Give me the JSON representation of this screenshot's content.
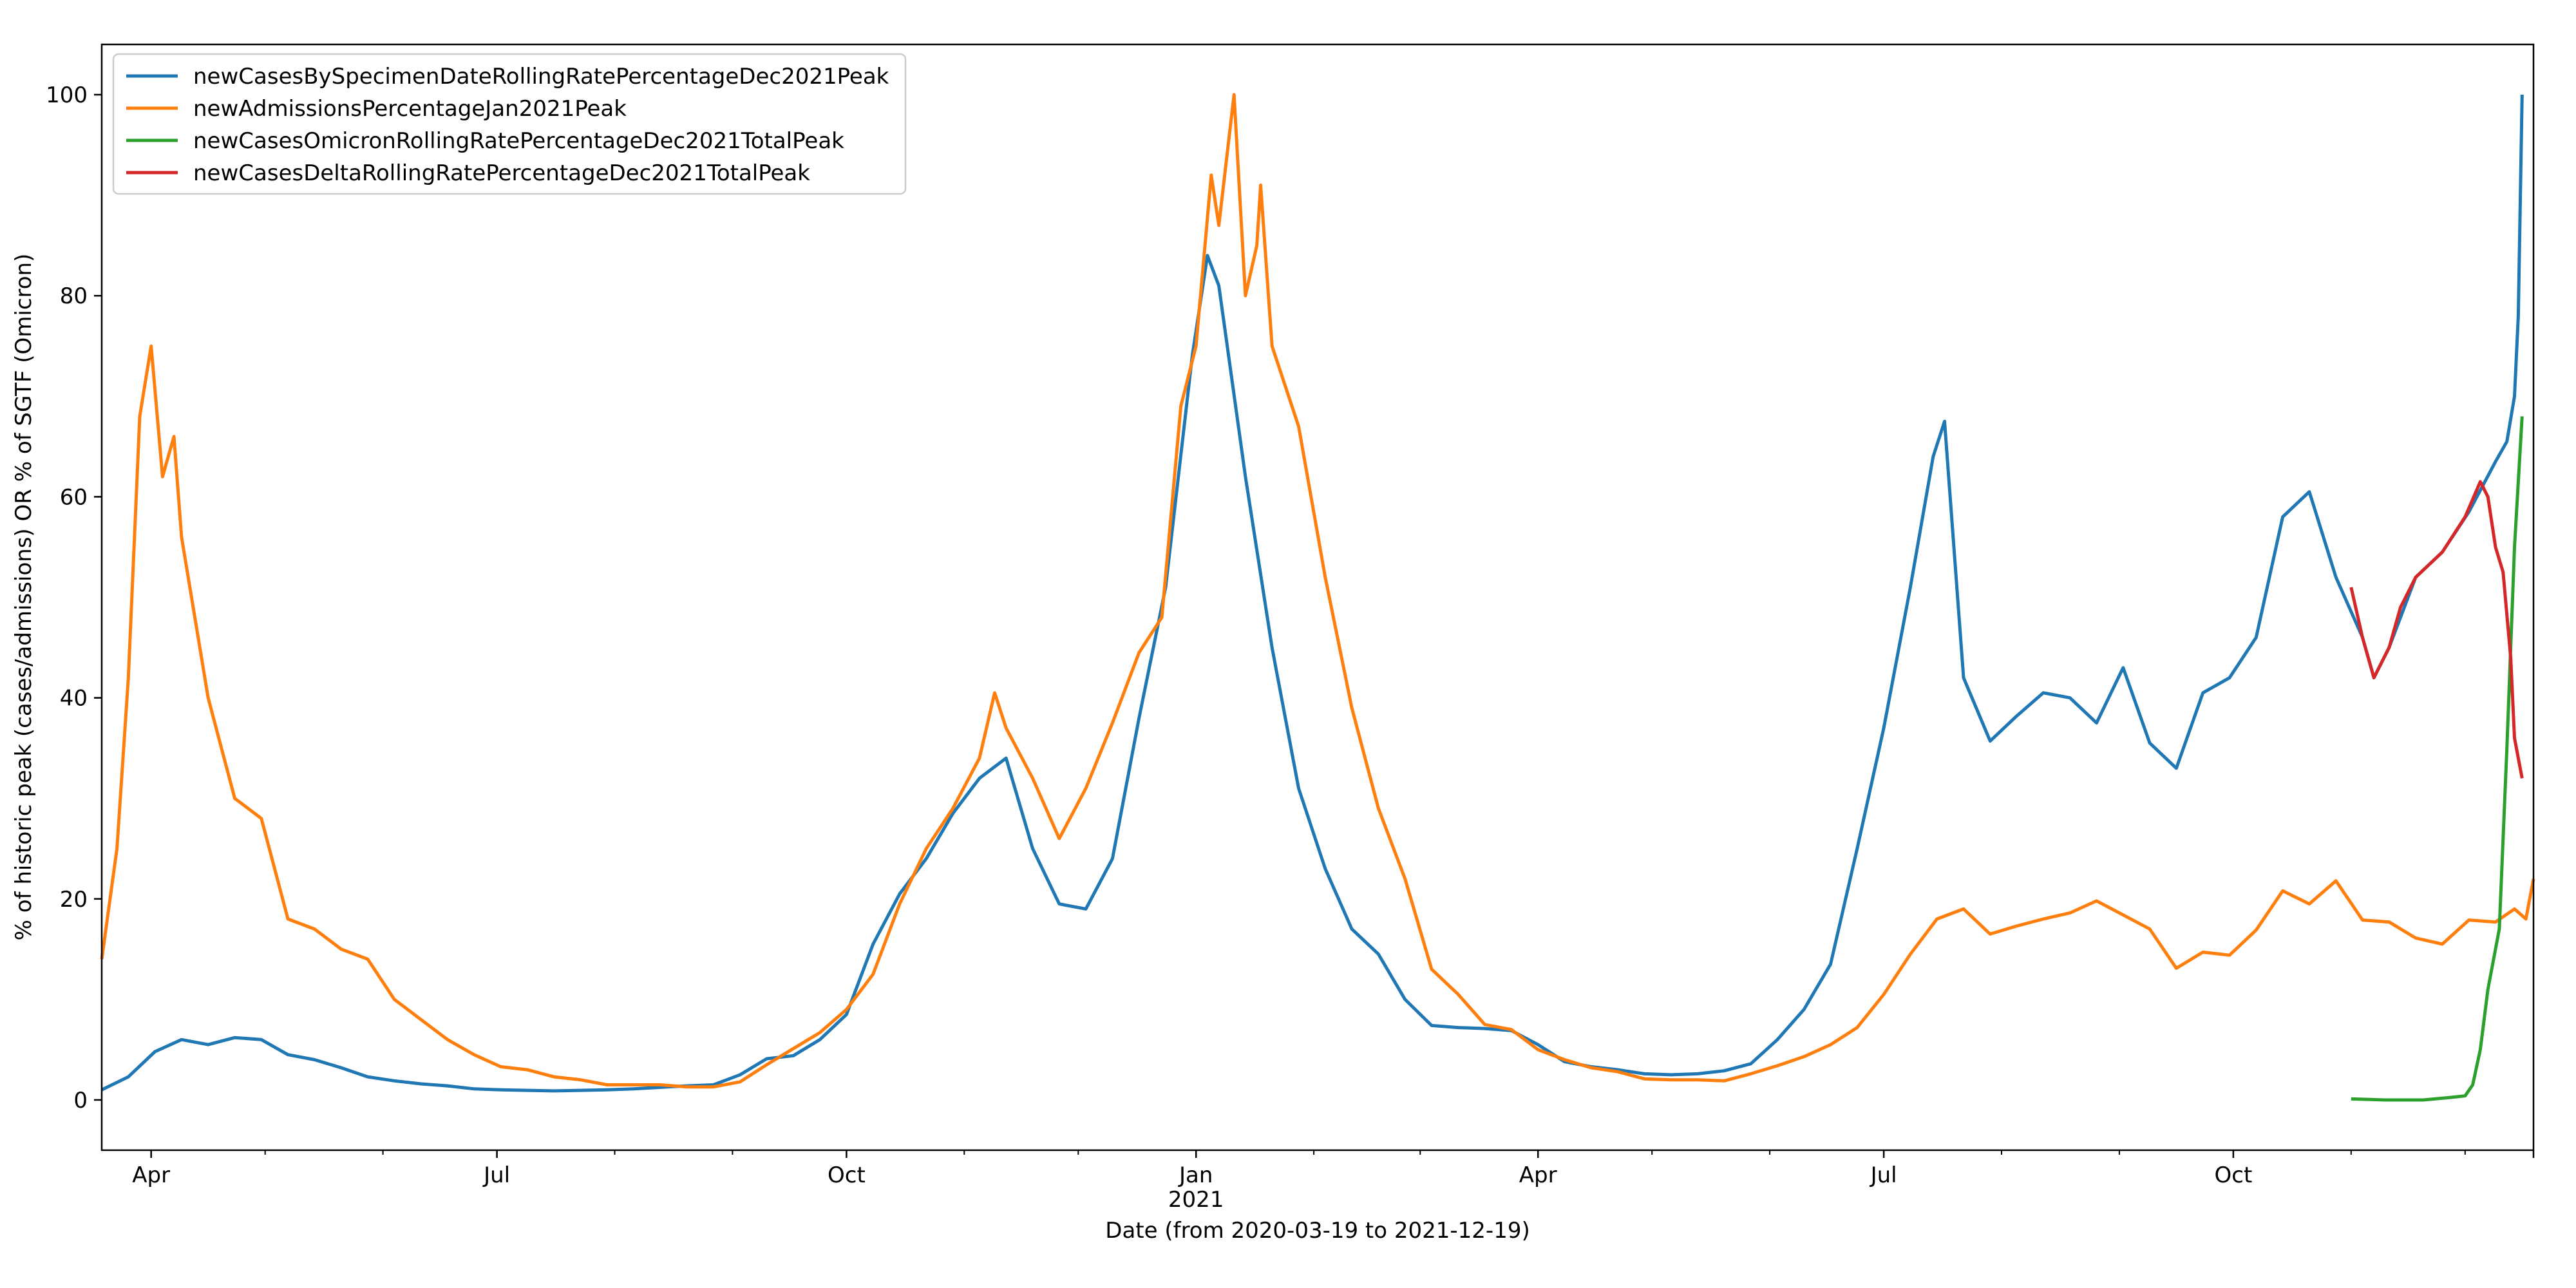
{
  "chart_data": {
    "type": "line",
    "title": "",
    "xlabel": "Date (from 2020-03-19 to 2021-12-19)",
    "ylabel": "% of historic peak (cases/admissions) OR % of SGTF (Omicron)",
    "xlim": [
      "2020-03-19",
      "2021-12-19"
    ],
    "ylim": [
      -5,
      105
    ],
    "yticks": [
      0,
      20,
      40,
      60,
      80,
      100
    ],
    "xticks": [
      {
        "date": "2020-04-01",
        "label": "Apr"
      },
      {
        "date": "2020-07-01",
        "label": "Jul"
      },
      {
        "date": "2020-10-01",
        "label": "Oct"
      },
      {
        "date": "2021-01-01",
        "label": "Jan",
        "sublabel": "2021"
      },
      {
        "date": "2021-04-01",
        "label": "Apr"
      },
      {
        "date": "2021-07-01",
        "label": "Jul"
      },
      {
        "date": "2021-10-01",
        "label": "Oct"
      }
    ],
    "minor_ticks": "monthly",
    "grid": false,
    "legend_position": "top-left",
    "series": [
      {
        "name": "newCasesBySpecimenDateRollingRatePercentageDec2021Peak",
        "color": "#1f77b4",
        "points": [
          [
            "2020-03-19",
            1
          ],
          [
            "2020-03-26",
            2.3
          ],
          [
            "2020-04-02",
            4.8
          ],
          [
            "2020-04-09",
            6
          ],
          [
            "2020-04-16",
            5.5
          ],
          [
            "2020-04-23",
            6.2
          ],
          [
            "2020-04-30",
            6
          ],
          [
            "2020-05-07",
            4.5
          ],
          [
            "2020-05-14",
            4
          ],
          [
            "2020-05-21",
            3.2
          ],
          [
            "2020-05-28",
            2.3
          ],
          [
            "2020-06-04",
            1.9
          ],
          [
            "2020-06-11",
            1.6
          ],
          [
            "2020-06-18",
            1.4
          ],
          [
            "2020-06-25",
            1.1
          ],
          [
            "2020-07-02",
            1
          ],
          [
            "2020-07-09",
            0.95
          ],
          [
            "2020-07-16",
            0.9
          ],
          [
            "2020-07-23",
            0.95
          ],
          [
            "2020-07-30",
            1
          ],
          [
            "2020-08-06",
            1.1
          ],
          [
            "2020-08-13",
            1.25
          ],
          [
            "2020-08-20",
            1.4
          ],
          [
            "2020-08-27",
            1.5
          ],
          [
            "2020-09-03",
            2.5
          ],
          [
            "2020-09-10",
            4.1
          ],
          [
            "2020-09-17",
            4.4
          ],
          [
            "2020-09-24",
            6
          ],
          [
            "2020-10-01",
            8.5
          ],
          [
            "2020-10-08",
            15.5
          ],
          [
            "2020-10-15",
            20.5
          ],
          [
            "2020-10-22",
            24
          ],
          [
            "2020-10-29",
            28.5
          ],
          [
            "2020-11-05",
            32
          ],
          [
            "2020-11-12",
            34
          ],
          [
            "2020-11-19",
            25
          ],
          [
            "2020-11-26",
            19.5
          ],
          [
            "2020-12-03",
            19
          ],
          [
            "2020-12-10",
            24
          ],
          [
            "2020-12-17",
            38
          ],
          [
            "2020-12-24",
            51
          ],
          [
            "2020-12-31",
            74
          ],
          [
            "2021-01-04",
            84
          ],
          [
            "2021-01-07",
            81
          ],
          [
            "2021-01-14",
            62
          ],
          [
            "2021-01-21",
            45
          ],
          [
            "2021-01-28",
            31
          ],
          [
            "2021-02-04",
            23
          ],
          [
            "2021-02-11",
            17
          ],
          [
            "2021-02-18",
            14.5
          ],
          [
            "2021-02-25",
            10
          ],
          [
            "2021-03-04",
            7.4
          ],
          [
            "2021-03-11",
            7.2
          ],
          [
            "2021-03-18",
            7.1
          ],
          [
            "2021-03-25",
            6.9
          ],
          [
            "2021-04-01",
            5.5
          ],
          [
            "2021-04-08",
            3.8
          ],
          [
            "2021-04-15",
            3.3
          ],
          [
            "2021-04-22",
            3
          ],
          [
            "2021-04-29",
            2.6
          ],
          [
            "2021-05-06",
            2.5
          ],
          [
            "2021-05-13",
            2.6
          ],
          [
            "2021-05-20",
            2.9
          ],
          [
            "2021-05-27",
            3.6
          ],
          [
            "2021-06-03",
            6
          ],
          [
            "2021-06-10",
            9
          ],
          [
            "2021-06-17",
            13.5
          ],
          [
            "2021-06-24",
            25
          ],
          [
            "2021-07-01",
            37
          ],
          [
            "2021-07-08",
            51
          ],
          [
            "2021-07-14",
            64
          ],
          [
            "2021-07-17",
            67.5
          ],
          [
            "2021-07-22",
            42
          ],
          [
            "2021-07-29",
            35.7
          ],
          [
            "2021-08-05",
            38.2
          ],
          [
            "2021-08-12",
            40.5
          ],
          [
            "2021-08-19",
            40
          ],
          [
            "2021-08-26",
            37.5
          ],
          [
            "2021-09-02",
            43
          ],
          [
            "2021-09-09",
            35.5
          ],
          [
            "2021-09-16",
            33
          ],
          [
            "2021-09-23",
            40.5
          ],
          [
            "2021-09-30",
            42
          ],
          [
            "2021-10-07",
            46
          ],
          [
            "2021-10-14",
            58
          ],
          [
            "2021-10-21",
            60.5
          ],
          [
            "2021-10-28",
            52
          ],
          [
            "2021-11-04",
            46
          ],
          [
            "2021-11-07",
            42
          ],
          [
            "2021-11-11",
            45
          ],
          [
            "2021-11-18",
            52
          ],
          [
            "2021-11-25",
            54.5
          ],
          [
            "2021-12-02",
            58.5
          ],
          [
            "2021-12-09",
            63.5
          ],
          [
            "2021-12-12",
            65.5
          ],
          [
            "2021-12-14",
            70
          ],
          [
            "2021-12-15",
            78
          ],
          [
            "2021-12-16",
            100
          ]
        ]
      },
      {
        "name": "newAdmissionsPercentageJan2021Peak",
        "color": "#ff7f0e",
        "points": [
          [
            "2020-03-19",
            14
          ],
          [
            "2020-03-23",
            25
          ],
          [
            "2020-03-26",
            42
          ],
          [
            "2020-03-29",
            68
          ],
          [
            "2020-04-01",
            75
          ],
          [
            "2020-04-04",
            62
          ],
          [
            "2020-04-07",
            66
          ],
          [
            "2020-04-09",
            56
          ],
          [
            "2020-04-16",
            40
          ],
          [
            "2020-04-23",
            30
          ],
          [
            "2020-04-30",
            28
          ],
          [
            "2020-05-07",
            18
          ],
          [
            "2020-05-14",
            17
          ],
          [
            "2020-05-21",
            15
          ],
          [
            "2020-05-28",
            14
          ],
          [
            "2020-06-04",
            10
          ],
          [
            "2020-06-11",
            8
          ],
          [
            "2020-06-18",
            6
          ],
          [
            "2020-06-25",
            4.5
          ],
          [
            "2020-07-02",
            3.3
          ],
          [
            "2020-07-09",
            3
          ],
          [
            "2020-07-16",
            2.3
          ],
          [
            "2020-07-23",
            2
          ],
          [
            "2020-07-30",
            1.5
          ],
          [
            "2020-08-06",
            1.5
          ],
          [
            "2020-08-13",
            1.5
          ],
          [
            "2020-08-20",
            1.3
          ],
          [
            "2020-08-27",
            1.3
          ],
          [
            "2020-09-03",
            1.8
          ],
          [
            "2020-09-10",
            3.5
          ],
          [
            "2020-09-17",
            5.1
          ],
          [
            "2020-09-24",
            6.7
          ],
          [
            "2020-10-01",
            9
          ],
          [
            "2020-10-08",
            12.5
          ],
          [
            "2020-10-15",
            19.5
          ],
          [
            "2020-10-22",
            25
          ],
          [
            "2020-10-29",
            29
          ],
          [
            "2020-11-05",
            34
          ],
          [
            "2020-11-09",
            40.5
          ],
          [
            "2020-11-12",
            37
          ],
          [
            "2020-11-19",
            32
          ],
          [
            "2020-11-26",
            26
          ],
          [
            "2020-12-03",
            31
          ],
          [
            "2020-12-10",
            37.5
          ],
          [
            "2020-12-17",
            44.5
          ],
          [
            "2020-12-23",
            48
          ],
          [
            "2020-12-28",
            69
          ],
          [
            "2021-01-01",
            75
          ],
          [
            "2021-01-05",
            92
          ],
          [
            "2021-01-07",
            87
          ],
          [
            "2021-01-11",
            100
          ],
          [
            "2021-01-14",
            80
          ],
          [
            "2021-01-17",
            85
          ],
          [
            "2021-01-18",
            91
          ],
          [
            "2021-01-21",
            75
          ],
          [
            "2021-01-28",
            67
          ],
          [
            "2021-02-04",
            52
          ],
          [
            "2021-02-11",
            39
          ],
          [
            "2021-02-18",
            29
          ],
          [
            "2021-02-25",
            22
          ],
          [
            "2021-03-04",
            13
          ],
          [
            "2021-03-11",
            10.5
          ],
          [
            "2021-03-18",
            7.5
          ],
          [
            "2021-03-25",
            7
          ],
          [
            "2021-04-01",
            5
          ],
          [
            "2021-04-08",
            4
          ],
          [
            "2021-04-15",
            3.2
          ],
          [
            "2021-04-22",
            2.8
          ],
          [
            "2021-04-29",
            2.1
          ],
          [
            "2021-05-06",
            2
          ],
          [
            "2021-05-13",
            2
          ],
          [
            "2021-05-20",
            1.9
          ],
          [
            "2021-05-27",
            2.6
          ],
          [
            "2021-06-03",
            3.4
          ],
          [
            "2021-06-10",
            4.3
          ],
          [
            "2021-06-17",
            5.5
          ],
          [
            "2021-06-24",
            7.2
          ],
          [
            "2021-07-01",
            10.5
          ],
          [
            "2021-07-08",
            14.5
          ],
          [
            "2021-07-15",
            18
          ],
          [
            "2021-07-22",
            19
          ],
          [
            "2021-07-29",
            16.5
          ],
          [
            "2021-08-05",
            17.3
          ],
          [
            "2021-08-12",
            18
          ],
          [
            "2021-08-19",
            18.6
          ],
          [
            "2021-08-26",
            19.8
          ],
          [
            "2021-09-02",
            18.4
          ],
          [
            "2021-09-09",
            17
          ],
          [
            "2021-09-16",
            13.1
          ],
          [
            "2021-09-23",
            14.7
          ],
          [
            "2021-09-30",
            14.4
          ],
          [
            "2021-10-07",
            16.9
          ],
          [
            "2021-10-14",
            20.8
          ],
          [
            "2021-10-21",
            19.5
          ],
          [
            "2021-10-28",
            21.8
          ],
          [
            "2021-11-04",
            17.9
          ],
          [
            "2021-11-11",
            17.7
          ],
          [
            "2021-11-18",
            16.1
          ],
          [
            "2021-11-25",
            15.5
          ],
          [
            "2021-12-02",
            17.9
          ],
          [
            "2021-12-09",
            17.7
          ],
          [
            "2021-12-14",
            19
          ],
          [
            "2021-12-17",
            18
          ],
          [
            "2021-12-19",
            22
          ]
        ]
      },
      {
        "name": "newCasesOmicronRollingRatePercentageDec2021TotalPeak",
        "color": "#2ca02c",
        "points": [
          [
            "2021-11-01",
            0.1
          ],
          [
            "2021-11-10",
            0
          ],
          [
            "2021-11-20",
            0
          ],
          [
            "2021-11-26",
            0.2
          ],
          [
            "2021-12-01",
            0.4
          ],
          [
            "2021-12-03",
            1.5
          ],
          [
            "2021-12-05",
            5
          ],
          [
            "2021-12-07",
            11
          ],
          [
            "2021-12-09",
            15
          ],
          [
            "2021-12-10",
            17
          ],
          [
            "2021-12-12",
            35
          ],
          [
            "2021-12-14",
            55
          ],
          [
            "2021-12-16",
            68
          ]
        ]
      },
      {
        "name": "newCasesDeltaRollingRatePercentageDec2021TotalPeak",
        "color": "#d62728",
        "points": [
          [
            "2021-11-01",
            51
          ],
          [
            "2021-11-04",
            46
          ],
          [
            "2021-11-07",
            42
          ],
          [
            "2021-11-11",
            45
          ],
          [
            "2021-11-14",
            49
          ],
          [
            "2021-11-18",
            52
          ],
          [
            "2021-11-25",
            54.5
          ],
          [
            "2021-12-01",
            58
          ],
          [
            "2021-12-05",
            61.5
          ],
          [
            "2021-12-07",
            60
          ],
          [
            "2021-12-09",
            55
          ],
          [
            "2021-12-11",
            52.5
          ],
          [
            "2021-12-13",
            44
          ],
          [
            "2021-12-14",
            36
          ],
          [
            "2021-12-16",
            32
          ]
        ]
      }
    ]
  }
}
